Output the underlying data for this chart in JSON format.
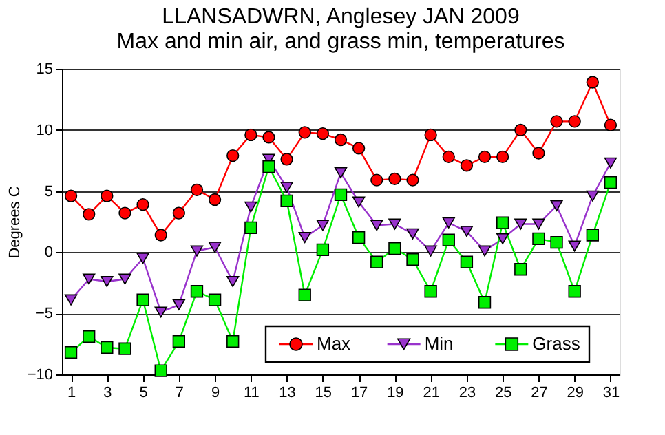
{
  "chart_data": {
    "type": "line",
    "title": "LLANSADWRN, Anglesey JAN 2009",
    "subtitle": "Max and min air, and grass min, temperatures",
    "ylabel": "Degrees C",
    "x": [
      1,
      2,
      3,
      4,
      5,
      6,
      7,
      8,
      9,
      10,
      11,
      12,
      13,
      14,
      15,
      16,
      17,
      18,
      19,
      20,
      21,
      22,
      23,
      24,
      25,
      26,
      27,
      28,
      29,
      30,
      31
    ],
    "series": [
      {
        "name": "Max",
        "color": "#ff0000",
        "marker": "circle",
        "values": [
          4.6,
          3.1,
          4.6,
          3.2,
          3.9,
          1.4,
          3.2,
          5.1,
          4.3,
          7.9,
          9.6,
          9.4,
          7.6,
          9.8,
          9.7,
          9.2,
          8.5,
          5.9,
          6.0,
          5.9,
          9.6,
          7.8,
          7.1,
          7.8,
          7.8,
          10.0,
          8.1,
          10.7,
          10.7,
          13.9,
          10.4
        ]
      },
      {
        "name": "Min",
        "color": "#9933cc",
        "marker": "triangle",
        "values": [
          -3.9,
          -2.2,
          -2.4,
          -2.2,
          -0.5,
          -4.9,
          -4.3,
          0.1,
          0.4,
          -2.4,
          3.7,
          7.6,
          5.3,
          1.2,
          2.2,
          6.5,
          4.1,
          2.2,
          2.3,
          1.5,
          0.1,
          2.4,
          1.7,
          0.1,
          1.1,
          2.3,
          2.3,
          3.8,
          0.5,
          4.6,
          7.3
        ]
      },
      {
        "name": "Grass",
        "color": "#00ee00",
        "marker": "square",
        "values": [
          -8.2,
          -6.9,
          -7.8,
          -7.9,
          -3.9,
          -9.7,
          -7.3,
          -3.2,
          -3.9,
          -7.3,
          2.0,
          7.0,
          4.2,
          -3.5,
          0.2,
          4.7,
          1.2,
          -0.8,
          0.3,
          -0.6,
          -3.2,
          1.0,
          -0.8,
          -4.1,
          2.4,
          -1.4,
          1.1,
          0.8,
          -3.2,
          1.4,
          5.7
        ]
      }
    ],
    "xlim": [
      0.5,
      31.5
    ],
    "xticks": [
      1,
      3,
      5,
      7,
      9,
      11,
      13,
      15,
      17,
      19,
      21,
      23,
      25,
      27,
      29,
      31
    ],
    "ylim": [
      -10,
      15
    ],
    "yticks": [
      -10,
      -5,
      0,
      5,
      10,
      15
    ],
    "grid": "y",
    "legend": "bottom right"
  }
}
